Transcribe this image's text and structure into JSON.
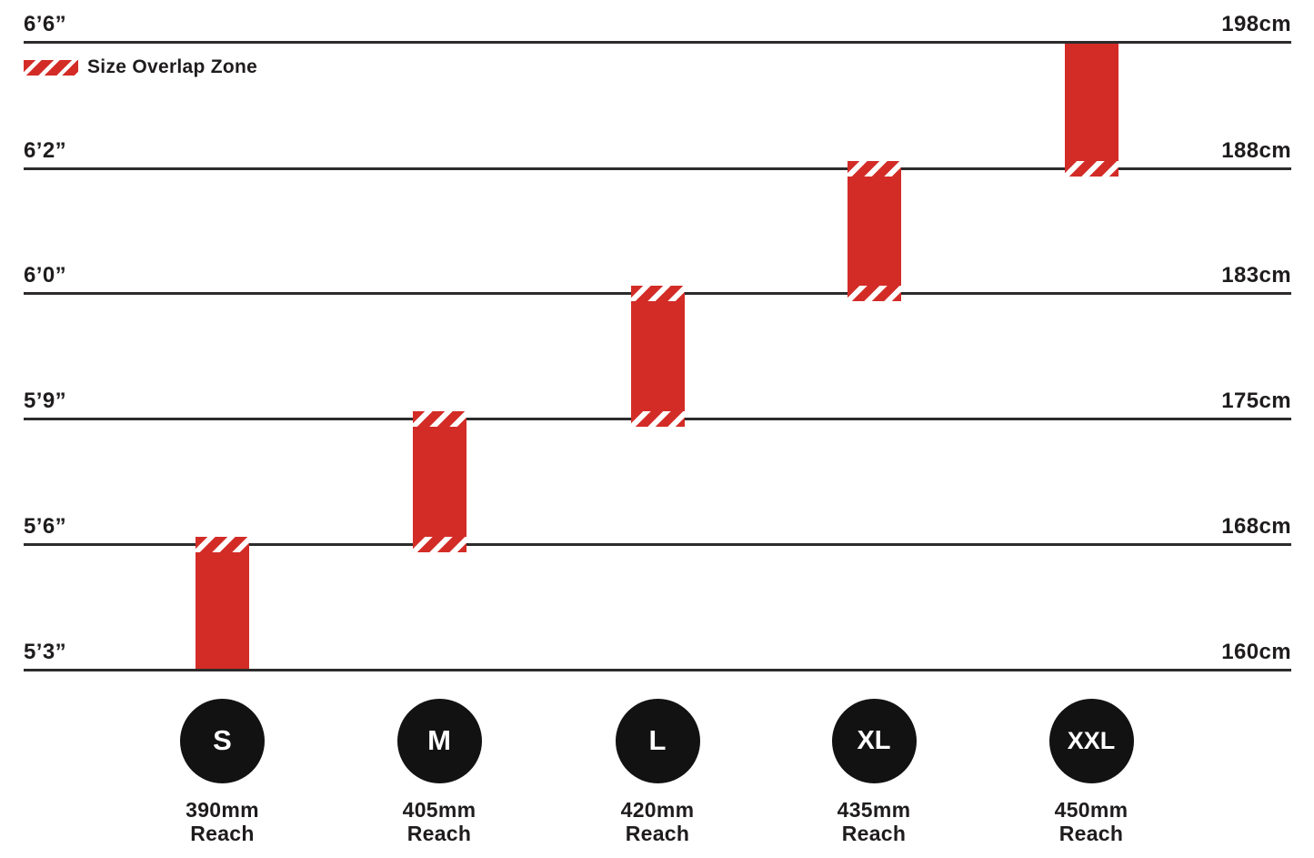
{
  "colors": {
    "red": "#d32c27",
    "line": "#2d2b2c",
    "text": "#1f1c1d",
    "circle_bg": "#121212",
    "circle_text": "#ffffff",
    "background": "#ffffff"
  },
  "chart_data": {
    "type": "bar",
    "subtype": "vertical-range-size-chart",
    "title": "",
    "legend_label": "Size Overlap Zone",
    "left_axis_unit": "feet-inches",
    "right_axis_unit": "cm",
    "grid": "horizontal-lines",
    "height_lines": [
      {
        "imperial": "6’6”",
        "metric": "198cm"
      },
      {
        "imperial": "6’2”",
        "metric": "188cm"
      },
      {
        "imperial": "6’0”",
        "metric": "183cm"
      },
      {
        "imperial": "5’9”",
        "metric": "175cm"
      },
      {
        "imperial": "5’6”",
        "metric": "168cm"
      },
      {
        "imperial": "5’3”",
        "metric": "160cm"
      }
    ],
    "sizes": [
      {
        "label": "S",
        "reach_lines": [
          "390mm",
          "Reach"
        ],
        "height_range_imperial": "5’3” – 5’6”",
        "height_range_metric": "160cm – 168cm",
        "top_line": 4,
        "bottom_line": 5,
        "overlap_top": true,
        "overlap_bottom": false
      },
      {
        "label": "M",
        "reach_lines": [
          "405mm",
          "Reach"
        ],
        "height_range_imperial": "5’6” – 5’9”",
        "height_range_metric": "168cm – 175cm",
        "top_line": 3,
        "bottom_line": 4,
        "overlap_top": true,
        "overlap_bottom": true
      },
      {
        "label": "L",
        "reach_lines": [
          "420mm",
          "Reach"
        ],
        "height_range_imperial": "5’9” – 6’0”",
        "height_range_metric": "175cm – 183cm",
        "top_line": 2,
        "bottom_line": 3,
        "overlap_top": true,
        "overlap_bottom": true
      },
      {
        "label": "XL",
        "reach_lines": [
          "435mm",
          "Reach"
        ],
        "height_range_imperial": "6’0” – 6’2”",
        "height_range_metric": "183cm – 188cm",
        "top_line": 1,
        "bottom_line": 2,
        "overlap_top": true,
        "overlap_bottom": true
      },
      {
        "label": "XXL",
        "reach_lines": [
          "450mm",
          "Reach"
        ],
        "height_range_imperial": "6’2” – 6’6”",
        "height_range_metric": "188cm – 198cm",
        "top_line": 0,
        "bottom_line": 1,
        "overlap_top": false,
        "overlap_bottom": true
      }
    ]
  }
}
